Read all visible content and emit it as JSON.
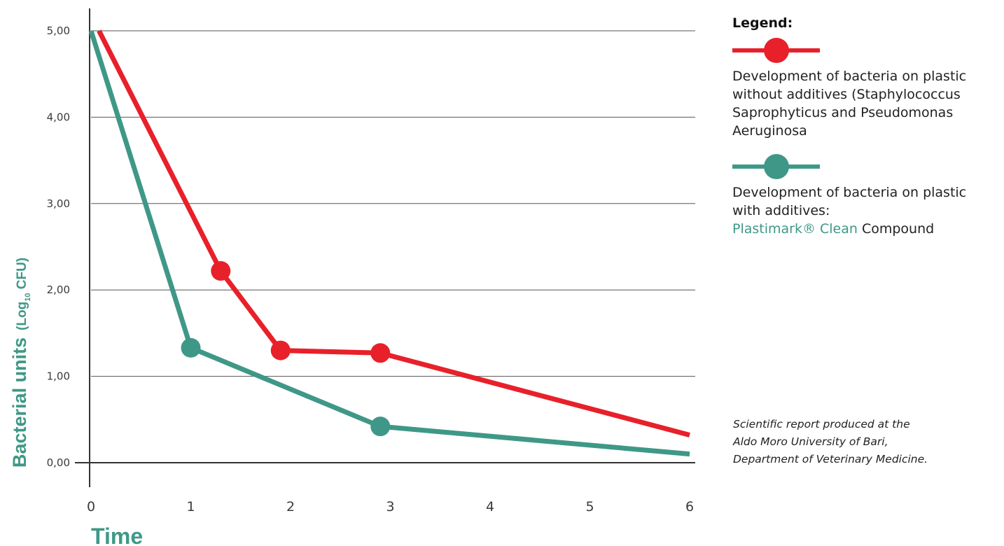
{
  "chart_data": {
    "type": "line",
    "xlabel": "Time",
    "ylabel": "Bacterial units",
    "ylabel_unit_prefix": "(Log",
    "ylabel_unit_sub": "10",
    "ylabel_unit_suffix": " CFU)",
    "xlim": [
      0,
      6
    ],
    "ylim": [
      0,
      5
    ],
    "x_ticks": [
      "0",
      "1",
      "2",
      "3",
      "4",
      "5",
      "6"
    ],
    "y_ticks": [
      "0,00",
      "1,00",
      "2,00",
      "3,00",
      "4,00",
      "5,00"
    ],
    "y_tick_values": [
      0,
      1,
      2,
      3,
      4,
      5
    ],
    "grid": "horizontal",
    "series": [
      {
        "key": "without_additives",
        "color": "#e8202a",
        "points": [
          {
            "x": 0.08,
            "y": 5.0,
            "marker": false
          },
          {
            "x": 1.3,
            "y": 2.22,
            "marker": true
          },
          {
            "x": 1.9,
            "y": 1.3,
            "marker": true
          },
          {
            "x": 2.9,
            "y": 1.27,
            "marker": true
          },
          {
            "x": 6.0,
            "y": 0.32,
            "marker": false
          }
        ]
      },
      {
        "key": "with_additives",
        "color": "#3f9887",
        "points": [
          {
            "x": 0.0,
            "y": 5.0,
            "marker": false
          },
          {
            "x": 1.0,
            "y": 1.33,
            "marker": true
          },
          {
            "x": 2.9,
            "y": 0.42,
            "marker": true
          },
          {
            "x": 6.0,
            "y": 0.1,
            "marker": false
          }
        ]
      }
    ]
  },
  "legend": {
    "title": "Legend:",
    "entries": [
      {
        "color": "#e8202a",
        "lines": [
          "Development of bacteria on plastic",
          "without additives (Staphylococcus",
          "Saprophyticus and Pseudomonas",
          "Aeruginosa"
        ]
      },
      {
        "color": "#3f9887",
        "lines": [
          "Development of bacteria on plastic",
          "with additives:"
        ],
        "accent_text": "Plastimark® Clean",
        "suffix_text": " Compound"
      }
    ]
  },
  "note": {
    "lines": [
      "Scientific report produced at the",
      "Aldo Moro University of Bari,",
      "Department of Veterinary Medicine."
    ]
  },
  "colors": {
    "accent": "#3f9887",
    "red": "#e8202a",
    "grid": "#555555",
    "axis": "#333333"
  }
}
